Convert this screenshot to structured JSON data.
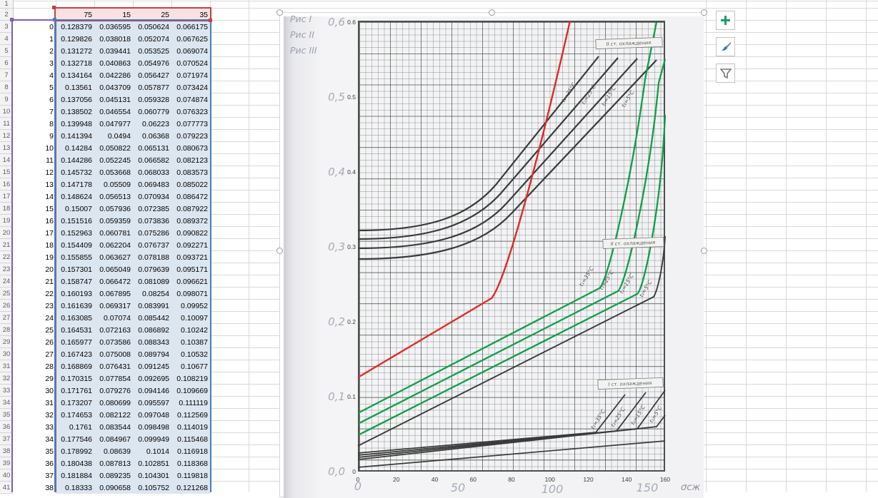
{
  "app": "spreadsheet-with-embedded-chart",
  "table": {
    "header_row": [
      "75",
      "15",
      "25",
      "35"
    ]
  },
  "chart_data": {
    "type": "line",
    "title": "",
    "xlabel": "",
    "ylabel": "",
    "x_axis": {
      "range": [
        0,
        160
      ],
      "tick_labels": [
        "0",
        "20",
        "40",
        "60",
        "80",
        "100",
        "120",
        "140",
        "160"
      ]
    },
    "y_axis": {
      "range": [
        0,
        0.6
      ],
      "tick_labels": [
        "0.6",
        "0.5",
        "0.4",
        "0.3",
        "0.2",
        "0.1",
        "0"
      ]
    },
    "categories": [
      0,
      1,
      2,
      3,
      4,
      5,
      6,
      7,
      8,
      9,
      10,
      11,
      12,
      13,
      14,
      15,
      16,
      17,
      18,
      19,
      20,
      21,
      22,
      23,
      24,
      25,
      26,
      27,
      28,
      29,
      30,
      31,
      32,
      33,
      34,
      35,
      36,
      37,
      38
    ],
    "series": [
      {
        "name": "75",
        "values": [
          0.128379,
          0.129826,
          0.131272,
          0.132718,
          0.134164,
          0.13561,
          0.137056,
          0.138502,
          0.139948,
          0.141394,
          0.14284,
          0.144286,
          0.145732,
          0.147178,
          0.148624,
          0.15007,
          0.151516,
          0.152963,
          0.154409,
          0.155855,
          0.157301,
          0.158747,
          0.160193,
          0.161639,
          0.163085,
          0.164531,
          0.165977,
          0.167423,
          0.168869,
          0.170315,
          0.171761,
          0.173207,
          0.174653,
          0.1761,
          0.177546,
          0.178992,
          0.180438,
          0.181884,
          0.18333
        ]
      },
      {
        "name": "15",
        "values": [
          0.036595,
          0.038018,
          0.039441,
          0.040863,
          0.042286,
          0.043709,
          0.045131,
          0.046554,
          0.047977,
          0.0494,
          0.050822,
          0.052245,
          0.053668,
          0.05509,
          0.056513,
          0.057936,
          0.059359,
          0.060781,
          0.062204,
          0.063627,
          0.065049,
          0.066472,
          0.067895,
          0.069317,
          0.07074,
          0.072163,
          0.073586,
          0.075008,
          0.076431,
          0.077854,
          0.079276,
          0.080699,
          0.082122,
          0.083544,
          0.084967,
          0.08639,
          0.087813,
          0.089235,
          0.090658
        ]
      },
      {
        "name": "25",
        "values": [
          0.050624,
          0.052074,
          0.053525,
          0.054976,
          0.056427,
          0.057877,
          0.059328,
          0.060779,
          0.06223,
          0.06368,
          0.065131,
          0.066582,
          0.068033,
          0.069483,
          0.070934,
          0.072385,
          0.073836,
          0.075286,
          0.076737,
          0.078188,
          0.079639,
          0.081089,
          0.08254,
          0.083991,
          0.085442,
          0.086892,
          0.088343,
          0.089794,
          0.091245,
          0.092695,
          0.094146,
          0.095597,
          0.097048,
          0.098498,
          0.099949,
          0.1014,
          0.102851,
          0.104301,
          0.105752
        ]
      },
      {
        "name": "35",
        "values": [
          0.066175,
          0.067625,
          0.069074,
          0.070524,
          0.071974,
          0.073424,
          0.074874,
          0.076323,
          0.077773,
          0.079223,
          0.080673,
          0.082123,
          0.083573,
          0.085022,
          0.086472,
          0.087922,
          0.089372,
          0.090822,
          0.092271,
          0.093721,
          0.095171,
          0.096621,
          0.098071,
          0.09952,
          0.10097,
          0.10242,
          0.10387,
          0.10532,
          0.10677,
          0.108219,
          0.109669,
          0.111119,
          0.112569,
          0.114019,
          0.115468,
          0.116918,
          0.118368,
          0.119818,
          0.121268
        ]
      }
    ],
    "background_scan": {
      "fig_labels": [
        "Рис I",
        "Рис II",
        "Рис III"
      ],
      "y_labels": [
        "0,6",
        "0,5",
        "0,4",
        "0,3",
        "0,2",
        "0,1",
        "0,0"
      ],
      "x_labels": [
        "0",
        "50",
        "100",
        "150"
      ],
      "x_axis_symbol": "σсж",
      "group_boxes": [
        "II ст. охлаждения",
        "II ст. охлаждения",
        "I ст. охлаждения"
      ],
      "temp_labels": [
        "t₁=35°C",
        "t₁=25°C",
        "t₁=15°C",
        "t₁=5°C"
      ],
      "curve_colors": {
        "red": "#de2b26",
        "green": "#0e9e48",
        "black": "#3a3a3a"
      }
    }
  },
  "chart_buttons": [
    {
      "name": "chart-elements",
      "icon": "plus-icon",
      "color": "#1e9c6b"
    },
    {
      "name": "chart-styles",
      "icon": "brush-icon",
      "color": "#2f7bbf"
    },
    {
      "name": "chart-filters",
      "icon": "funnel-icon",
      "color": "#737373"
    }
  ]
}
